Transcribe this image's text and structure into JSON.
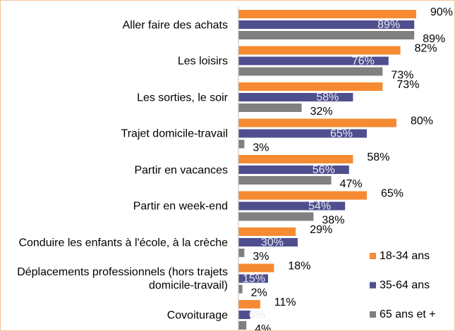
{
  "chart_data": {
    "type": "bar",
    "orientation": "horizontal",
    "categories": [
      "Aller faire des achats",
      "Les loisirs",
      "Les sorties, le soir",
      "Trajet domicile-travail",
      "Partir en vacances",
      "Partir en week-end",
      "Conduire les enfants à l'école, à la crèche",
      "Déplacements professionnels (hors trajets domicile-travail)",
      "Covoiturage"
    ],
    "series": [
      {
        "name": "18-34 ans",
        "color": "#f58a33",
        "values": [
          90,
          82,
          73,
          80,
          58,
          65,
          29,
          18,
          11
        ],
        "value_labels": [
          "90%",
          "82%",
          "73%",
          "80%",
          "58%",
          "65%",
          "29%",
          "18%",
          "11%"
        ]
      },
      {
        "name": "35-64 ans",
        "color": "#4f4f8f",
        "values": [
          89,
          76,
          58,
          65,
          56,
          54,
          30,
          15,
          6
        ],
        "value_labels": [
          "89%",
          "76%",
          "58%",
          "65%",
          "56%",
          "54%",
          "30%",
          "15%",
          "6%"
        ]
      },
      {
        "name": "65 ans et +",
        "color": "#808080",
        "values": [
          89,
          73,
          32,
          3,
          47,
          38,
          3,
          2,
          4
        ],
        "value_labels": [
          "89%",
          "73%",
          "32%",
          "3%",
          "47%",
          "38%",
          "3%",
          "2%",
          "4%"
        ]
      }
    ],
    "xlim": [
      0,
      100
    ],
    "legend": "lower right"
  }
}
